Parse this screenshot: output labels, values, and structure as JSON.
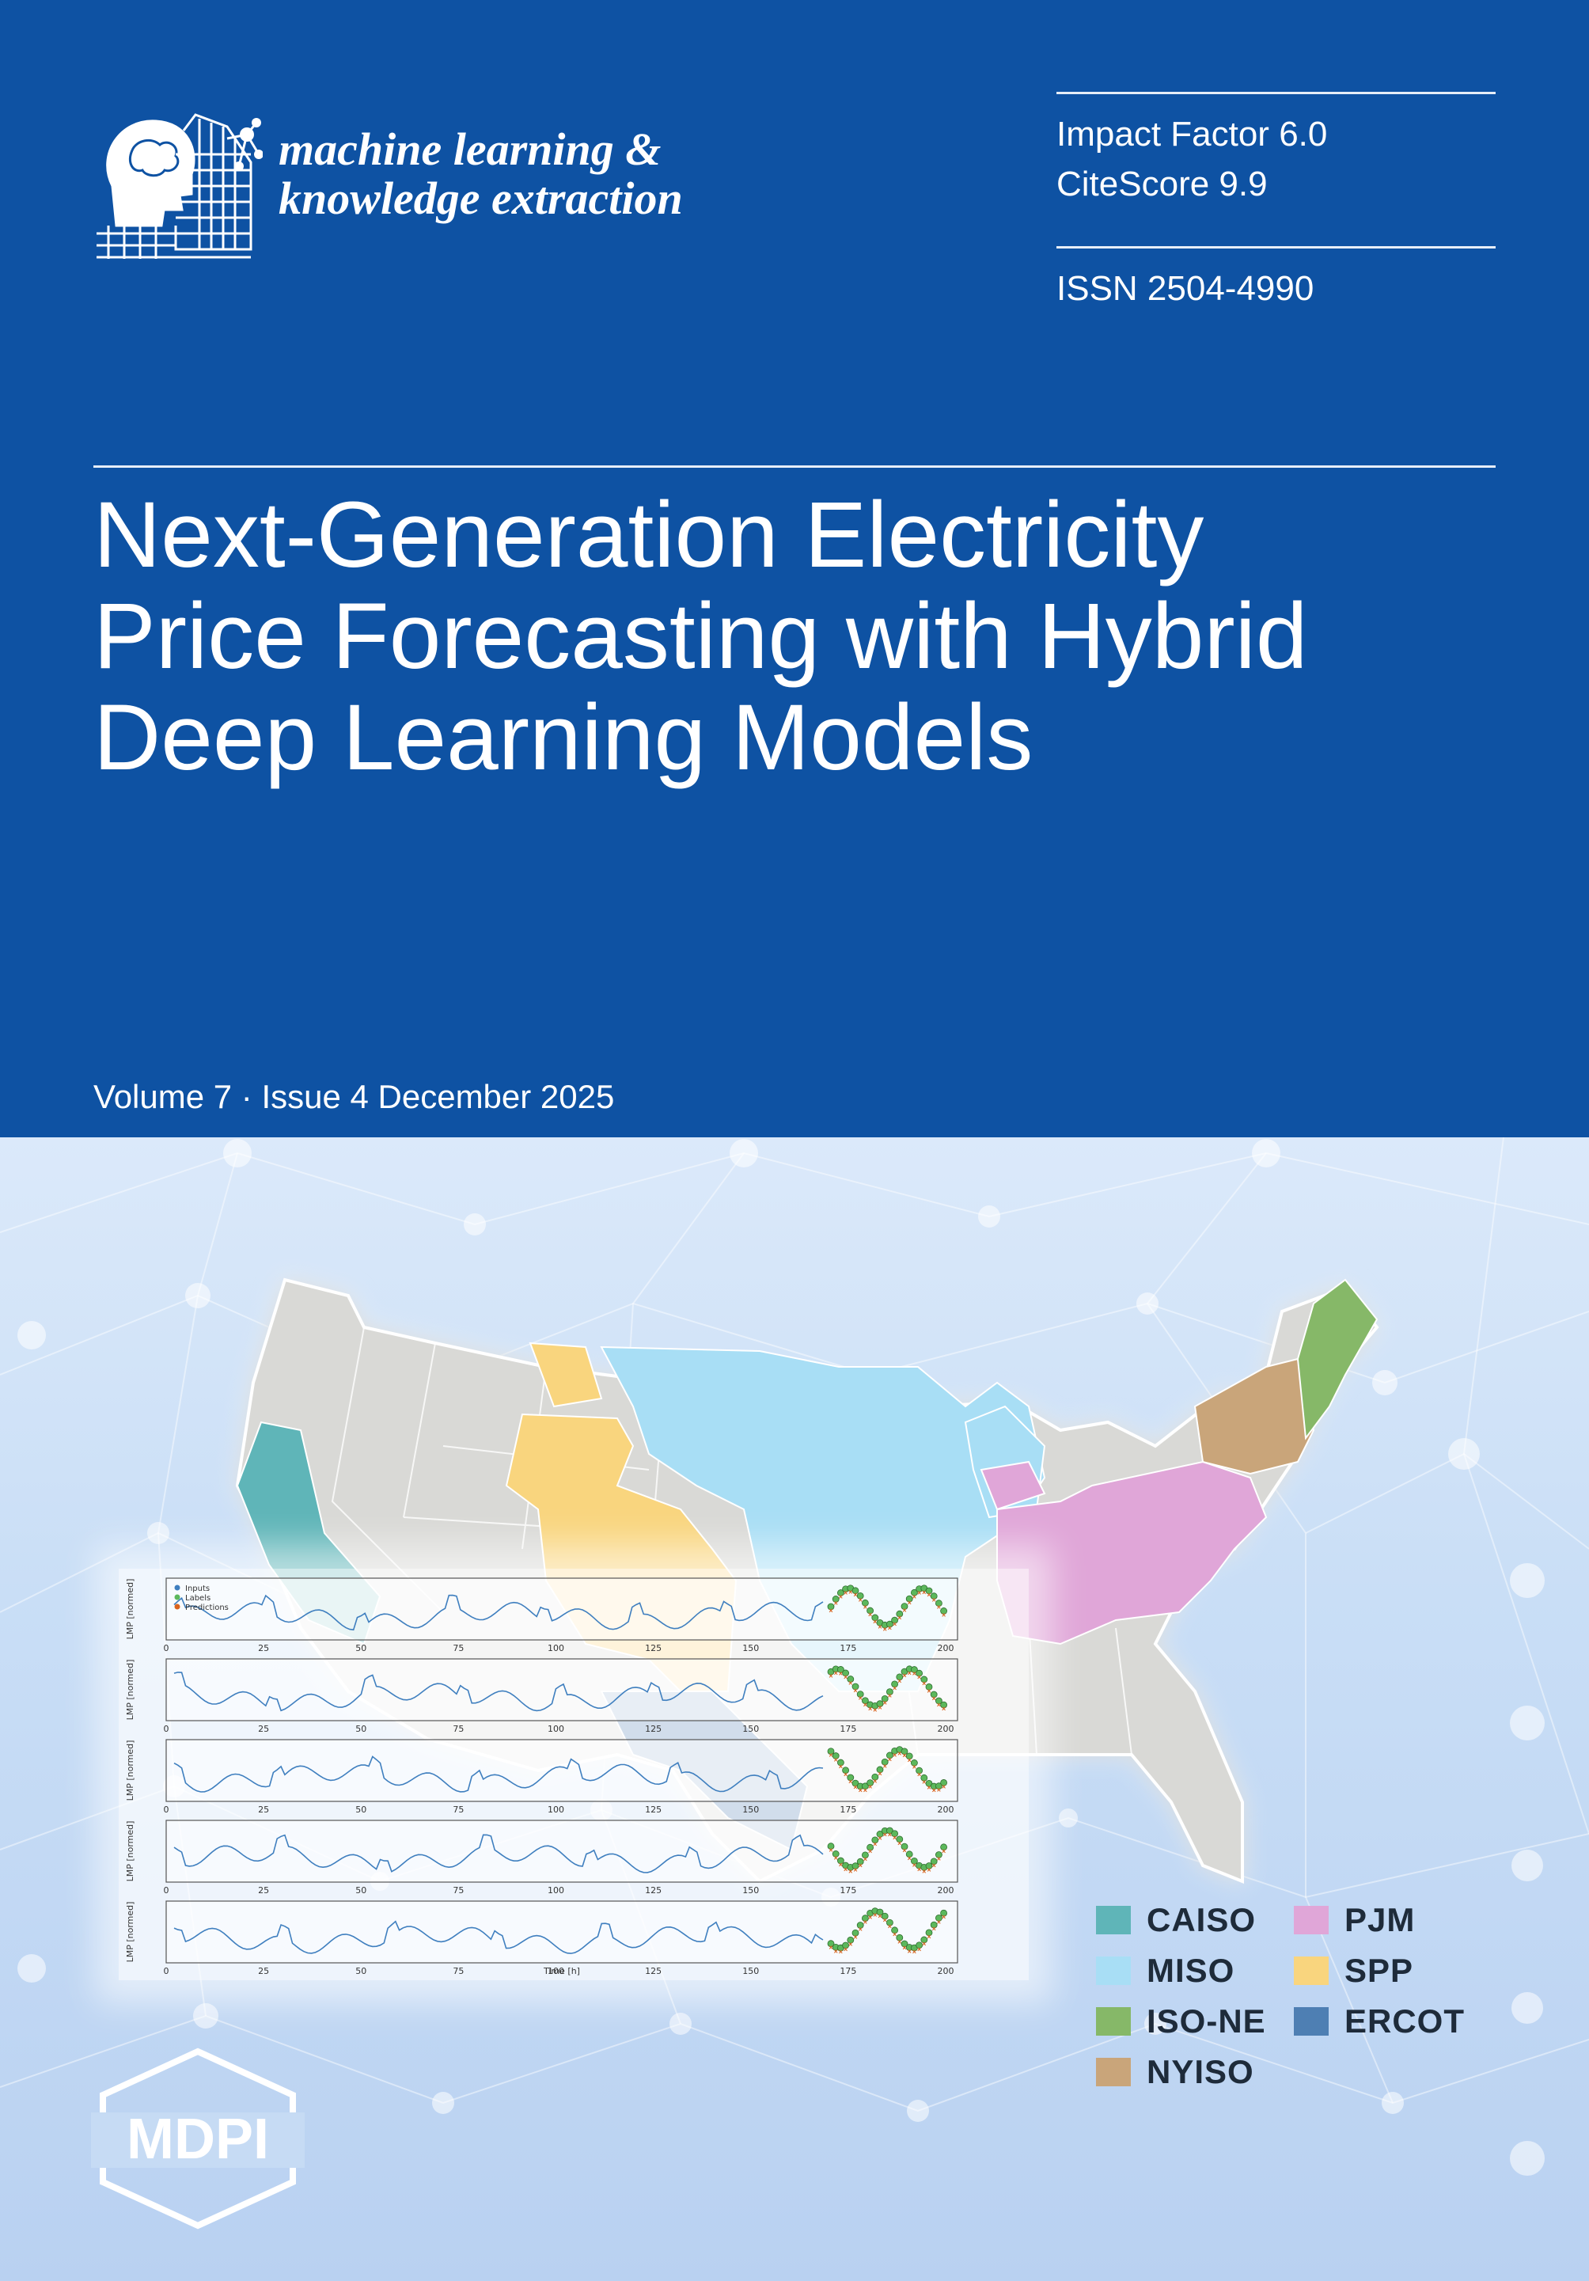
{
  "journal": {
    "name_line1": "machine learning &",
    "name_line2": "knowledge extraction",
    "logo_icon": "brain-head-network-icon"
  },
  "metrics": {
    "impact_factor": "Impact Factor 6.0",
    "citescore": "CiteScore 9.9",
    "issn": "ISSN 2504-4990"
  },
  "article": {
    "title_line1": "Next-Generation Electricity",
    "title_line2": "Price Forecasting with Hybrid",
    "title_line3": "Deep Learning Models"
  },
  "issue": "Volume 7 · Issue 4 December 2025",
  "plots": {
    "legend": [
      "Inputs",
      "Labels",
      "Predictions"
    ],
    "ylabel": "LMP [normed]",
    "xlabel": "Time [h]",
    "xticks": [
      "0",
      "25",
      "50",
      "75",
      "100",
      "125",
      "150",
      "175",
      "200"
    ]
  },
  "legend": {
    "items": [
      {
        "label": "CAISO",
        "color": "#5fb5b8"
      },
      {
        "label": "MISO",
        "color": "#a8def5"
      },
      {
        "label": "ISO-NE",
        "color": "#86b868"
      },
      {
        "label": "NYISO",
        "color": "#c9a57a"
      },
      {
        "label": "PJM",
        "color": "#e0a6d8"
      },
      {
        "label": "SPP",
        "color": "#f9d57e"
      },
      {
        "label": "ERCOT",
        "color": "#4e7fb3"
      }
    ]
  },
  "publisher": "MDPI",
  "colors": {
    "cover_blue": "#0e52a3"
  }
}
